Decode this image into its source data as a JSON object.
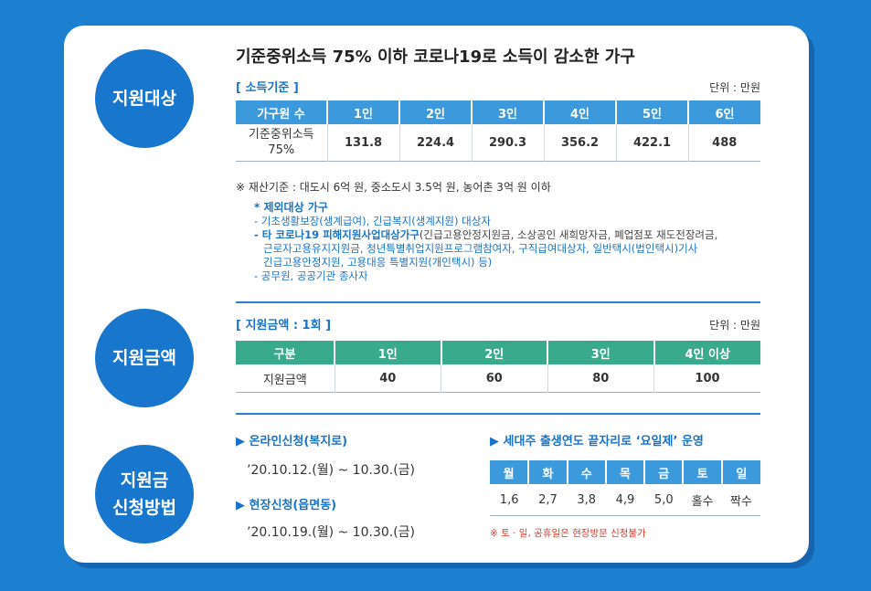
{
  "sections": {
    "target": {
      "label": "지원대상"
    },
    "amount": {
      "label": "지원금액"
    },
    "apply": {
      "label": "지원금\n신청방법"
    }
  },
  "target": {
    "title": "기준중위소득 75% 이하 코로나19로 소득이 감소한 가구",
    "criteria_label": "[ 소득기준 ]",
    "unit": "단위 : 만원",
    "table": {
      "headers": [
        "가구원 수",
        "1인",
        "2인",
        "3인",
        "4인",
        "5인",
        "6인"
      ],
      "row_label": "기준중위소득\n75%",
      "values": [
        "131.8",
        "224.4",
        "290.3",
        "356.2",
        "422.1",
        "488"
      ]
    },
    "asset_note": "※ 재산기준 : 대도시 6억 원, 중소도시 3.5억 원, 농어촌 3억 원 이하",
    "exclusion": {
      "title": "* 제외대상 가구",
      "item1": "- 기초생활보장(생계급여), 긴급복지(생계지원) 대상자",
      "item2_lead": "- 타 코로나19 피해지원사업대상가구",
      "item2_rest": "(긴급고용안정지원금, 소상공인 새희망자금, 폐업점포 재도전장려금,",
      "item2_line2": "근로자고용유지지원금, 청년특별취업지원프로그램참여자, 구직급여대상자, 일반택시(법인택시)기사",
      "item2_line3": "긴급고용안정지원, 고용대응 특별지원(개인택시) 등)",
      "item3": "- 공무원, 공공기관 종사자"
    }
  },
  "amount": {
    "label": "[ 지원금액 : 1회 ]",
    "unit": "단위 : 만원",
    "table": {
      "headers": [
        "구분",
        "1인",
        "2인",
        "3인",
        "4인 이상"
      ],
      "row_label": "지원금액",
      "values": [
        "40",
        "60",
        "80",
        "100"
      ]
    }
  },
  "apply": {
    "online_title": "▶ 온라인신청(복지로)",
    "online_date": "’20.10.12.(월) ~ 10.30.(금)",
    "onsite_title": "▶ 현장신청(읍면동)",
    "onsite_date": "’20.10.19.(월) ~ 10.30.(금)",
    "weekday_title": "▶ 세대주 출생연도 끝자리로 ‘요일제’ 운영",
    "days": [
      "월",
      "화",
      "수",
      "목",
      "금",
      "토",
      "일"
    ],
    "digits": [
      "1,6",
      "2,7",
      "3,8",
      "4,9",
      "5,0",
      "홀수",
      "짝수"
    ],
    "weekend_note": "※ 토 · 일, 공휴일은 현장방문 신청불가"
  },
  "colors": {
    "background": "#1d7fd0",
    "circle": "#1876cc",
    "header_blue": "#3b99dc",
    "header_green": "#3aaa8c",
    "accent": "#1a73c7",
    "warning": "#e0392b"
  }
}
